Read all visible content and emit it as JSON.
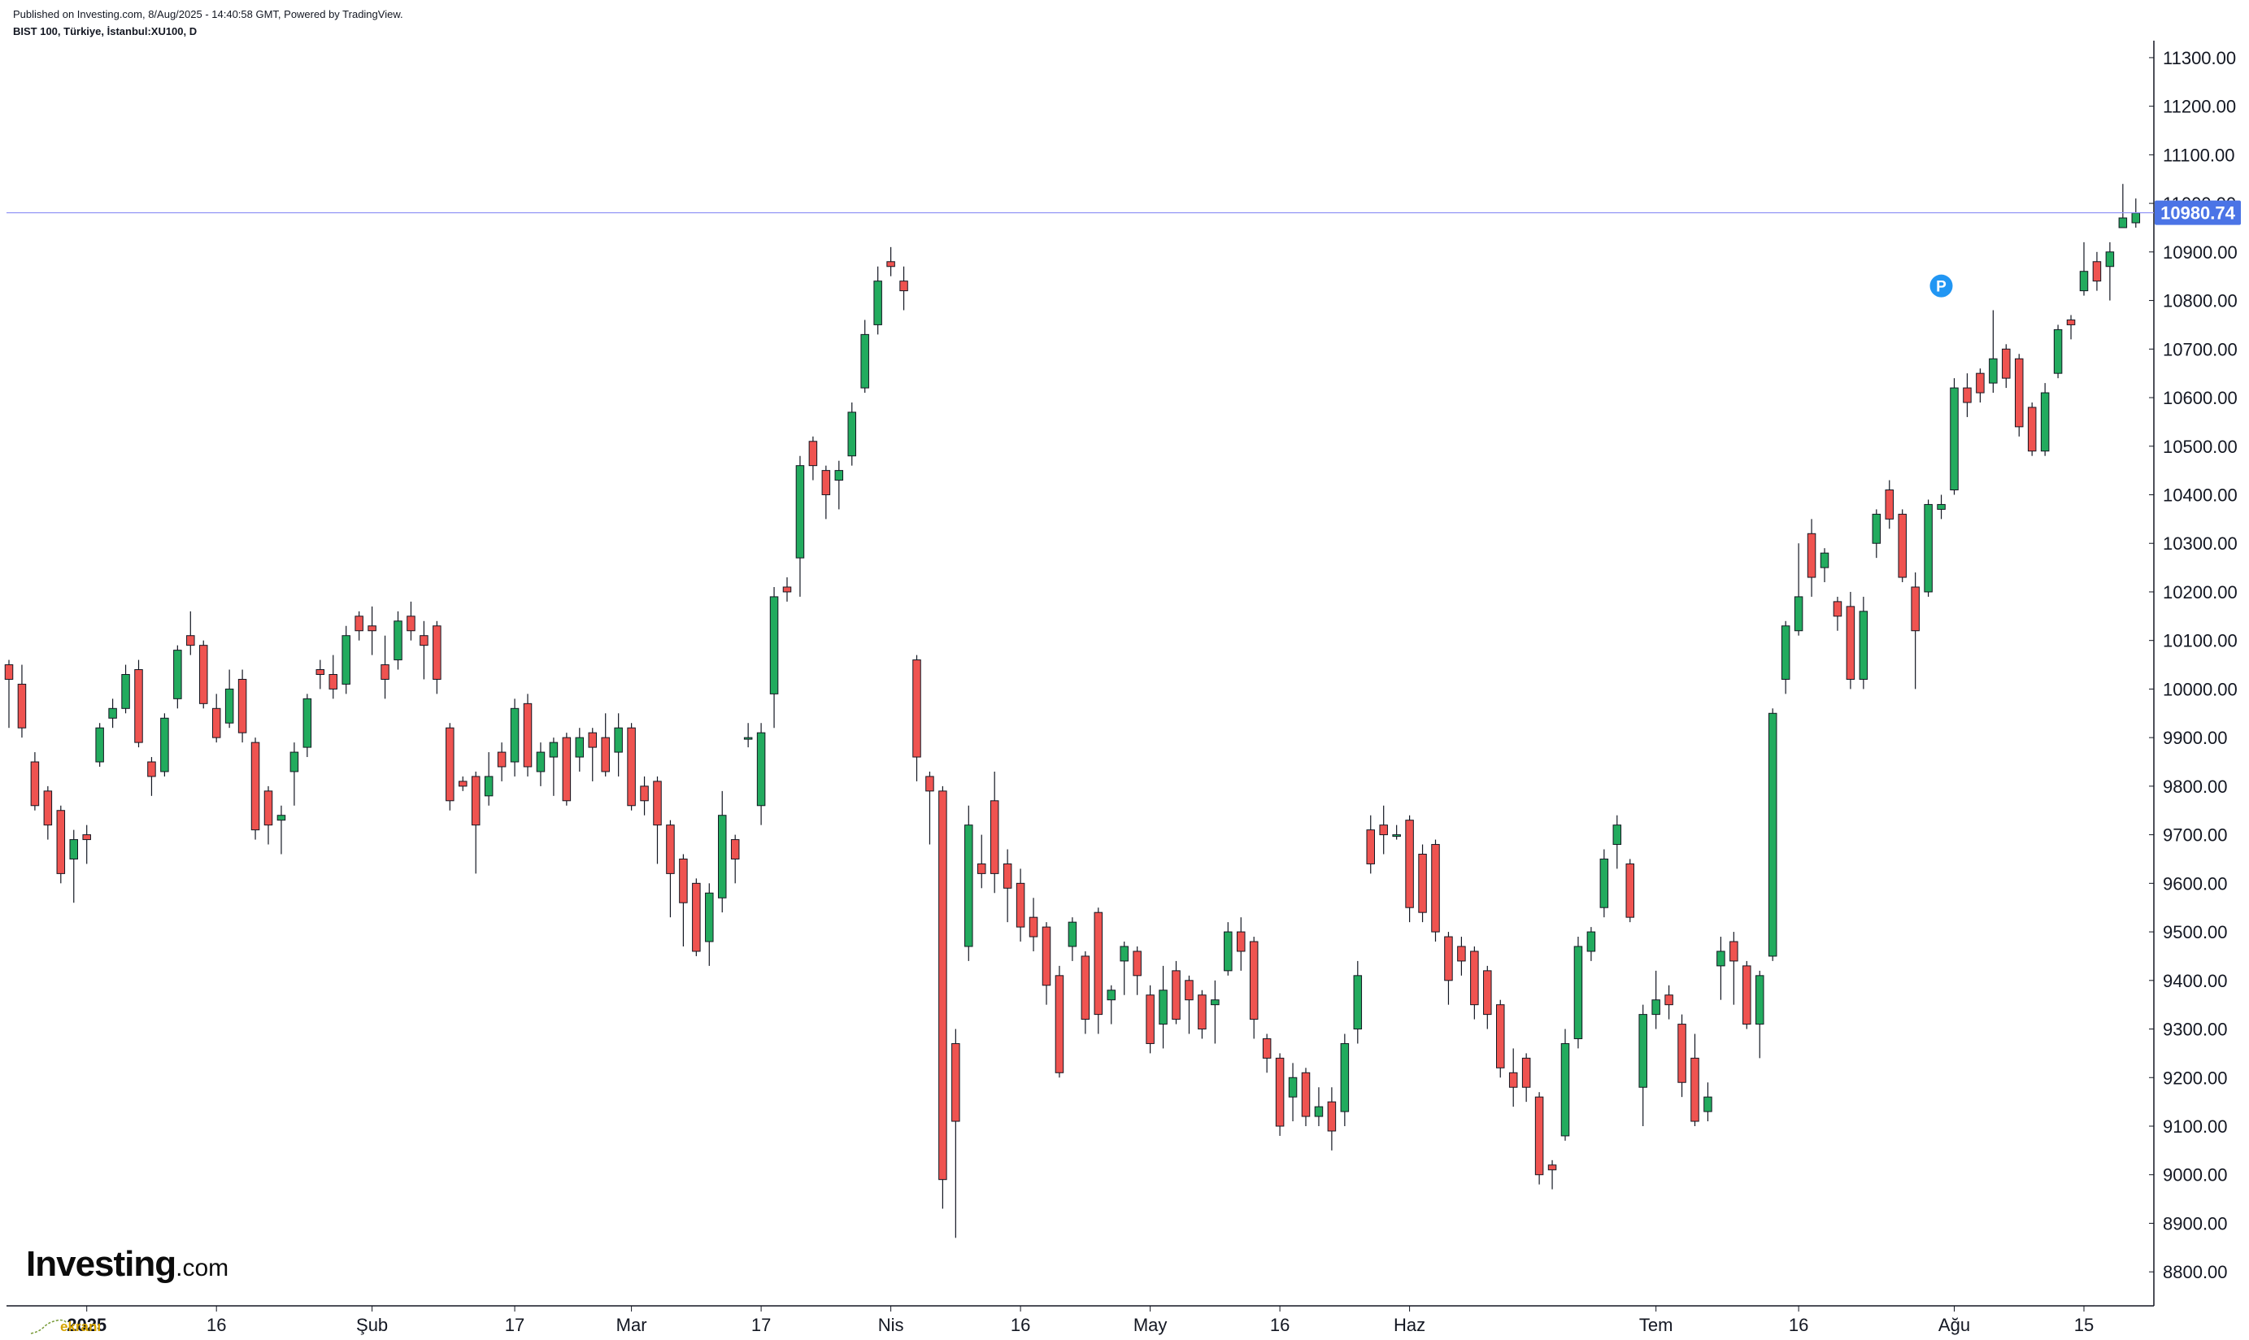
{
  "header": {
    "published": "Published on Investing.com, 8/Aug/2025 - 14:40:58 GMT, Powered by TradingView.",
    "symbol": "BIST 100, Türkiye, İstanbul:XU100, D"
  },
  "logo": {
    "name": "Investing",
    "domain": ".com",
    "watermark": "ekranı"
  },
  "colors": {
    "up": "#22ab5e",
    "down": "#ef5350",
    "wick": "#131722",
    "price_line": "#9598f6",
    "price_tag": "#4b74e6",
    "marker": "#2196f3"
  },
  "chart_data": {
    "type": "candlestick",
    "title": "BIST 100, Türkiye, İstanbul:XU100, D",
    "ylim": [
      8730,
      11335
    ],
    "y_ticks": [
      8800,
      8900,
      9000,
      9100,
      9200,
      9300,
      9400,
      9500,
      9600,
      9700,
      9800,
      9900,
      10000,
      10100,
      10200,
      10300,
      10400,
      10500,
      10600,
      10700,
      10800,
      10900,
      11000,
      11100,
      11200,
      11300
    ],
    "y_tick_labels": [
      "8800.00",
      "8900.00",
      "9000.00",
      "9100.00",
      "9200.00",
      "9300.00",
      "9400.00",
      "9500.00",
      "9600.00",
      "9700.00",
      "9800.00",
      "9900.00",
      "10000.00",
      "10100.00",
      "10200.00",
      "10300.00",
      "10400.00",
      "10500.00",
      "10600.00",
      "10700.00",
      "10800.00",
      "10900.00",
      "11000.00",
      "11100.00",
      "11200.00",
      "11300.00"
    ],
    "x_ticks": [
      {
        "index": 6,
        "label": "2025",
        "bold": true
      },
      {
        "index": 16,
        "label": "16",
        "bold": false
      },
      {
        "index": 28,
        "label": "Şub",
        "bold": false
      },
      {
        "index": 39,
        "label": "17",
        "bold": false
      },
      {
        "index": 48,
        "label": "Mar",
        "bold": false
      },
      {
        "index": 58,
        "label": "17",
        "bold": false
      },
      {
        "index": 68,
        "label": "Nis",
        "bold": false
      },
      {
        "index": 78,
        "label": "16",
        "bold": false
      },
      {
        "index": 88,
        "label": "May",
        "bold": false
      },
      {
        "index": 98,
        "label": "16",
        "bold": false
      },
      {
        "index": 108,
        "label": "Haz",
        "bold": false
      },
      {
        "index": 127,
        "label": "Tem",
        "bold": false
      },
      {
        "index": 138,
        "label": "16",
        "bold": false
      },
      {
        "index": 150,
        "label": "Ağu",
        "bold": false
      },
      {
        "index": 160,
        "label": "15",
        "bold": false
      }
    ],
    "current_price": 10980.74,
    "current_price_label": "10980.74",
    "marker": {
      "label": "P",
      "index": 150,
      "value": 10830
    },
    "candles": [
      [
        10050,
        10020,
        10060,
        9920
      ],
      [
        10010,
        9920,
        10050,
        9900
      ],
      [
        9850,
        9760,
        9870,
        9750
      ],
      [
        9790,
        9720,
        9800,
        9690
      ],
      [
        9750,
        9620,
        9760,
        9600
      ],
      [
        9650,
        9690,
        9710,
        9560
      ],
      [
        9700,
        9690,
        9720,
        9640
      ],
      [
        9850,
        9920,
        9930,
        9840
      ],
      [
        9940,
        9960,
        9980,
        9920
      ],
      [
        9960,
        10030,
        10050,
        9950
      ],
      [
        10040,
        9890,
        10060,
        9880
      ],
      [
        9850,
        9820,
        9860,
        9780
      ],
      [
        9830,
        9940,
        9950,
        9820
      ],
      [
        9980,
        10080,
        10090,
        9960
      ],
      [
        10110,
        10090,
        10160,
        10070
      ],
      [
        10090,
        9970,
        10100,
        9960
      ],
      [
        9960,
        9900,
        9990,
        9890
      ],
      [
        9930,
        10000,
        10040,
        9920
      ],
      [
        10020,
        9910,
        10040,
        9890
      ],
      [
        9890,
        9710,
        9900,
        9690
      ],
      [
        9790,
        9720,
        9800,
        9680
      ],
      [
        9730,
        9740,
        9760,
        9660
      ],
      [
        9830,
        9870,
        9890,
        9760
      ],
      [
        9880,
        9980,
        9990,
        9860
      ],
      [
        10040,
        10030,
        10060,
        10000
      ],
      [
        10030,
        10000,
        10070,
        9980
      ],
      [
        10010,
        10110,
        10130,
        9990
      ],
      [
        10150,
        10120,
        10160,
        10100
      ],
      [
        10130,
        10120,
        10170,
        10070
      ],
      [
        10050,
        10020,
        10110,
        9980
      ],
      [
        10060,
        10140,
        10160,
        10040
      ],
      [
        10150,
        10120,
        10180,
        10100
      ],
      [
        10110,
        10090,
        10140,
        10020
      ],
      [
        10130,
        10020,
        10140,
        9990
      ],
      [
        9920,
        9770,
        9930,
        9750
      ],
      [
        9810,
        9800,
        9820,
        9790
      ],
      [
        9820,
        9720,
        9830,
        9620
      ],
      [
        9780,
        9820,
        9870,
        9760
      ],
      [
        9870,
        9840,
        9890,
        9810
      ],
      [
        9850,
        9960,
        9980,
        9820
      ],
      [
        9970,
        9840,
        9990,
        9820
      ],
      [
        9830,
        9870,
        9890,
        9800
      ],
      [
        9860,
        9890,
        9900,
        9780
      ],
      [
        9900,
        9770,
        9910,
        9760
      ],
      [
        9860,
        9900,
        9920,
        9830
      ],
      [
        9910,
        9880,
        9920,
        9810
      ],
      [
        9900,
        9830,
        9950,
        9820
      ],
      [
        9870,
        9920,
        9950,
        9820
      ],
      [
        9920,
        9760,
        9930,
        9750
      ],
      [
        9800,
        9770,
        9820,
        9740
      ],
      [
        9810,
        9720,
        9820,
        9640
      ],
      [
        9720,
        9620,
        9730,
        9530
      ],
      [
        9650,
        9560,
        9660,
        9470
      ],
      [
        9600,
        9460,
        9610,
        9450
      ],
      [
        9480,
        9580,
        9600,
        9430
      ],
      [
        9570,
        9740,
        9790,
        9540
      ],
      [
        9690,
        9650,
        9700,
        9600
      ],
      [
        9900,
        9900,
        9930,
        9880
      ],
      [
        9760,
        9910,
        9930,
        9720
      ],
      [
        9990,
        10190,
        10210,
        9920
      ],
      [
        10210,
        10200,
        10230,
        10180
      ],
      [
        10270,
        10460,
        10480,
        10190
      ],
      [
        10510,
        10460,
        10520,
        10430
      ],
      [
        10450,
        10400,
        10460,
        10350
      ],
      [
        10430,
        10450,
        10470,
        10370
      ],
      [
        10480,
        10570,
        10590,
        10460
      ],
      [
        10620,
        10730,
        10760,
        10610
      ],
      [
        10750,
        10840,
        10870,
        10730
      ],
      [
        10880,
        10870,
        10910,
        10850
      ],
      [
        10840,
        10820,
        10870,
        10780
      ],
      [
        10060,
        9860,
        10070,
        9810
      ],
      [
        9820,
        9790,
        9830,
        9680
      ],
      [
        9790,
        8990,
        9800,
        8930
      ],
      [
        9270,
        9110,
        9300,
        8870
      ],
      [
        9470,
        9720,
        9760,
        9440
      ],
      [
        9640,
        9620,
        9700,
        9590
      ],
      [
        9770,
        9620,
        9830,
        9580
      ],
      [
        9640,
        9590,
        9670,
        9520
      ],
      [
        9600,
        9510,
        9630,
        9480
      ],
      [
        9530,
        9490,
        9570,
        9460
      ],
      [
        9510,
        9390,
        9520,
        9350
      ],
      [
        9410,
        9210,
        9430,
        9200
      ],
      [
        9470,
        9520,
        9530,
        9440
      ],
      [
        9450,
        9320,
        9460,
        9290
      ],
      [
        9540,
        9330,
        9550,
        9290
      ],
      [
        9360,
        9380,
        9390,
        9310
      ],
      [
        9440,
        9470,
        9480,
        9370
      ],
      [
        9460,
        9410,
        9470,
        9370
      ],
      [
        9370,
        9270,
        9390,
        9250
      ],
      [
        9310,
        9380,
        9430,
        9260
      ],
      [
        9420,
        9320,
        9440,
        9310
      ],
      [
        9400,
        9360,
        9410,
        9290
      ],
      [
        9370,
        9300,
        9380,
        9280
      ],
      [
        9350,
        9360,
        9400,
        9270
      ],
      [
        9420,
        9500,
        9520,
        9410
      ],
      [
        9500,
        9460,
        9530,
        9420
      ],
      [
        9480,
        9320,
        9490,
        9280
      ],
      [
        9280,
        9240,
        9290,
        9210
      ],
      [
        9240,
        9100,
        9250,
        9080
      ],
      [
        9160,
        9200,
        9230,
        9110
      ],
      [
        9210,
        9120,
        9220,
        9100
      ],
      [
        9120,
        9140,
        9180,
        9100
      ],
      [
        9150,
        9090,
        9180,
        9050
      ],
      [
        9130,
        9270,
        9290,
        9100
      ],
      [
        9300,
        9410,
        9440,
        9270
      ],
      [
        9710,
        9640,
        9740,
        9620
      ],
      [
        9720,
        9700,
        9760,
        9660
      ],
      [
        9700,
        9700,
        9720,
        9690
      ],
      [
        9730,
        9550,
        9740,
        9520
      ],
      [
        9660,
        9540,
        9680,
        9520
      ],
      [
        9680,
        9500,
        9690,
        9480
      ],
      [
        9490,
        9400,
        9500,
        9350
      ],
      [
        9470,
        9440,
        9490,
        9410
      ],
      [
        9460,
        9350,
        9470,
        9320
      ],
      [
        9420,
        9330,
        9430,
        9300
      ],
      [
        9350,
        9220,
        9360,
        9200
      ],
      [
        9210,
        9180,
        9260,
        9140
      ],
      [
        9240,
        9180,
        9250,
        9150
      ],
      [
        9160,
        9000,
        9170,
        8980
      ],
      [
        9020,
        9010,
        9030,
        8970
      ],
      [
        9080,
        9270,
        9300,
        9070
      ],
      [
        9280,
        9470,
        9490,
        9260
      ],
      [
        9460,
        9500,
        9510,
        9440
      ],
      [
        9550,
        9650,
        9670,
        9530
      ],
      [
        9680,
        9720,
        9740,
        9630
      ],
      [
        9640,
        9530,
        9650,
        9520
      ],
      [
        9180,
        9330,
        9350,
        9100
      ],
      [
        9330,
        9360,
        9420,
        9300
      ],
      [
        9370,
        9350,
        9390,
        9320
      ],
      [
        9310,
        9190,
        9330,
        9160
      ],
      [
        9240,
        9110,
        9290,
        9100
      ],
      [
        9130,
        9160,
        9190,
        9110
      ],
      [
        9430,
        9460,
        9490,
        9360
      ],
      [
        9480,
        9440,
        9500,
        9350
      ],
      [
        9430,
        9310,
        9440,
        9300
      ],
      [
        9310,
        9410,
        9420,
        9240
      ],
      [
        9450,
        9950,
        9960,
        9440
      ],
      [
        10020,
        10130,
        10140,
        9990
      ],
      [
        10120,
        10190,
        10300,
        10110
      ],
      [
        10320,
        10230,
        10350,
        10190
      ],
      [
        10250,
        10280,
        10290,
        10220
      ],
      [
        10180,
        10150,
        10190,
        10120
      ],
      [
        10170,
        10020,
        10200,
        10000
      ],
      [
        10020,
        10160,
        10190,
        10000
      ],
      [
        10300,
        10360,
        10370,
        10270
      ],
      [
        10410,
        10350,
        10430,
        10330
      ],
      [
        10360,
        10230,
        10370,
        10220
      ],
      [
        10210,
        10120,
        10240,
        10000
      ],
      [
        10200,
        10380,
        10390,
        10190
      ],
      [
        10370,
        10380,
        10400,
        10350
      ],
      [
        10410,
        10620,
        10640,
        10400
      ],
      [
        10620,
        10590,
        10650,
        10560
      ],
      [
        10650,
        10610,
        10660,
        10590
      ],
      [
        10630,
        10680,
        10780,
        10610
      ],
      [
        10700,
        10640,
        10710,
        10620
      ],
      [
        10680,
        10540,
        10690,
        10520
      ],
      [
        10580,
        10490,
        10590,
        10480
      ],
      [
        10490,
        10610,
        10630,
        10480
      ],
      [
        10650,
        10740,
        10750,
        10640
      ],
      [
        10760,
        10750,
        10770,
        10720
      ],
      [
        10820,
        10860,
        10920,
        10810
      ],
      [
        10880,
        10840,
        10900,
        10820
      ],
      [
        10870,
        10900,
        10920,
        10800
      ],
      [
        10950,
        10970,
        11040,
        10950
      ],
      [
        10960,
        10980,
        11010,
        10950
      ]
    ]
  }
}
